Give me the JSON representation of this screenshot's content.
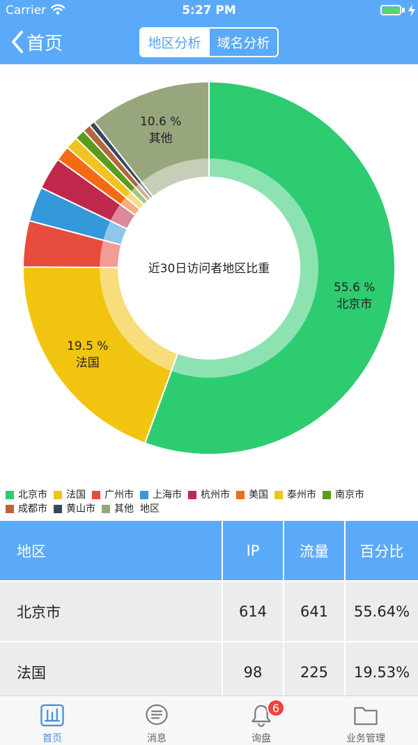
{
  "status": {
    "carrier": "Carrier",
    "time": "5:27 PM"
  },
  "nav": {
    "back_label": "首页",
    "segments": [
      {
        "label": "地区分析",
        "selected": true
      },
      {
        "label": "域名分析",
        "selected": false
      }
    ]
  },
  "chart_data": {
    "type": "pie",
    "donut": true,
    "center_label": "近30日访问者地区比重",
    "slices": [
      {
        "name": "北京市",
        "value": 55.6,
        "color": "#2ecc71",
        "label": "55.6 %"
      },
      {
        "name": "法国",
        "value": 19.5,
        "color": "#f1c40f",
        "label": "19.5 %"
      },
      {
        "name": "广州市",
        "value": 4.0,
        "color": "#e74c3c"
      },
      {
        "name": "上海市",
        "value": 3.0,
        "color": "#3498db"
      },
      {
        "name": "杭州市",
        "value": 2.8,
        "color": "#c0284b"
      },
      {
        "name": "美国",
        "value": 1.3,
        "color": "#f56b12"
      },
      {
        "name": "泰州市",
        "value": 1.1,
        "color": "#f2c31e"
      },
      {
        "name": "南京市",
        "value": 0.9,
        "color": "#5e9a1c"
      },
      {
        "name": "成都市",
        "value": 0.7,
        "color": "#b5663b"
      },
      {
        "name": "黄山市",
        "value": 0.5,
        "color": "#34495e"
      },
      {
        "name": "其他",
        "value": 10.6,
        "color": "#98a67d",
        "label": "10.6 %"
      }
    ],
    "legend": [
      "北京市",
      "法国",
      "广州市",
      "上海市",
      "杭州市",
      "美国",
      "泰州市",
      "南京市",
      "成都市",
      "黄山市",
      "其他"
    ],
    "legend_title": "地区",
    "legend_placement": "bottom"
  },
  "table": {
    "headers": [
      "地区",
      "IP",
      "流量",
      "百分比"
    ],
    "rows": [
      [
        "北京市",
        "614",
        "641",
        "55.64%"
      ],
      [
        "法国",
        "98",
        "225",
        "19.53%"
      ]
    ]
  },
  "tabbar": {
    "items": [
      {
        "label": "首页",
        "icon": "chart-icon",
        "active": true
      },
      {
        "label": "消息",
        "icon": "message-icon",
        "active": false
      },
      {
        "label": "询盘",
        "icon": "bell-icon",
        "active": false,
        "badge": "6"
      },
      {
        "label": "业务管理",
        "icon": "folder-icon",
        "active": false
      }
    ]
  }
}
